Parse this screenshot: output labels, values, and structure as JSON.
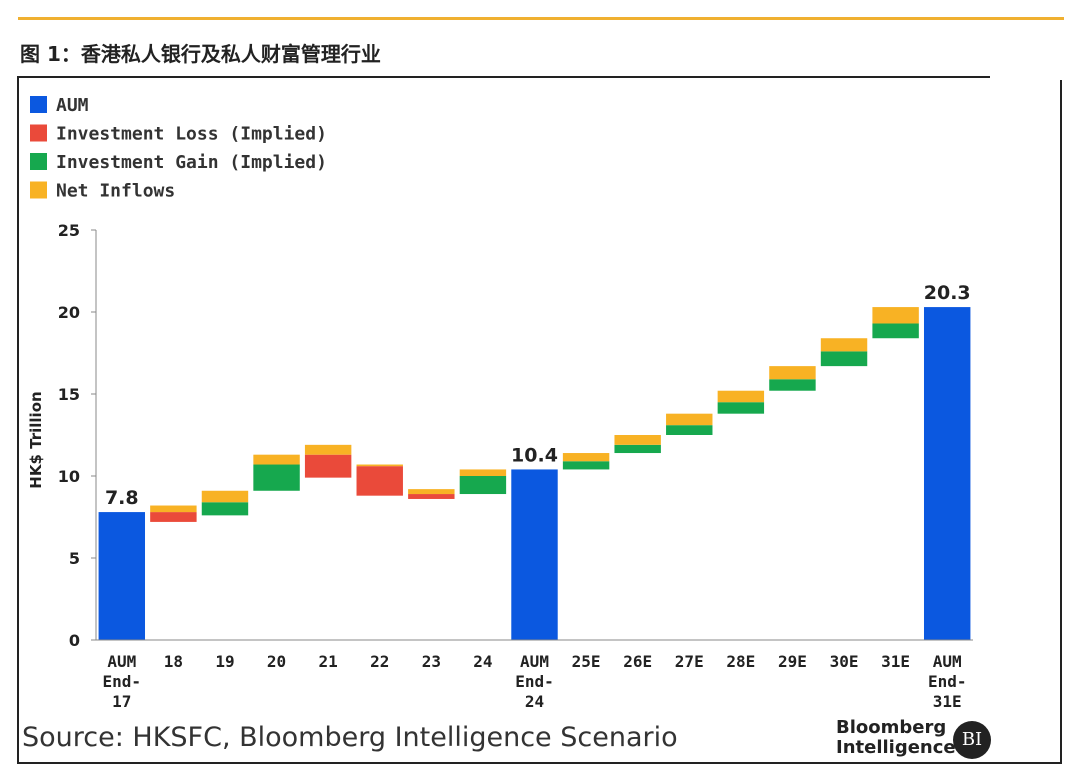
{
  "figure_title": "图 1：香港私人银行及私人财富管理行业",
  "source_note": "Source: HKSFC, Bloomberg Intelligence Scenario",
  "logo": {
    "line1": "Bloomberg",
    "line2": "Intelligence",
    "badge": "BI"
  },
  "colors": {
    "aum": "#0b58e0",
    "loss": "#ea4a3a",
    "gain": "#16a84e",
    "inflow": "#f8b224"
  },
  "chart_data": {
    "type": "bar",
    "subtype": "waterfall",
    "ylabel": "HK$ Trillion",
    "ylim": [
      0,
      25
    ],
    "yticks": [
      "0",
      "5",
      "10",
      "15",
      "20",
      "25"
    ],
    "legend": [
      {
        "key": "aum",
        "label": "AUM"
      },
      {
        "key": "loss",
        "label": "Investment Loss (Implied)"
      },
      {
        "key": "gain",
        "label": "Investment Gain (Implied)"
      },
      {
        "key": "inflow",
        "label": "Net Inflows"
      }
    ],
    "categories": [
      [
        "AUM",
        "End-",
        "17"
      ],
      [
        "18"
      ],
      [
        "19"
      ],
      [
        "20"
      ],
      [
        "21"
      ],
      [
        "22"
      ],
      [
        "23"
      ],
      [
        "24"
      ],
      [
        "AUM",
        "End-",
        "24"
      ],
      [
        "25E"
      ],
      [
        "26E"
      ],
      [
        "27E"
      ],
      [
        "28E"
      ],
      [
        "29E"
      ],
      [
        "30E"
      ],
      [
        "31E"
      ],
      [
        "AUM",
        "End-",
        "31E"
      ]
    ],
    "bars": [
      {
        "segments": [
          {
            "type": "aum",
            "from": 0,
            "to": 7.8
          }
        ],
        "label": "7.8"
      },
      {
        "segments": [
          {
            "type": "loss",
            "from": 7.2,
            "to": 7.8
          },
          {
            "type": "inflow",
            "from": 7.8,
            "to": 8.2
          }
        ]
      },
      {
        "segments": [
          {
            "type": "gain",
            "from": 7.6,
            "to": 8.4
          },
          {
            "type": "inflow",
            "from": 8.4,
            "to": 9.1
          }
        ]
      },
      {
        "segments": [
          {
            "type": "gain",
            "from": 9.1,
            "to": 10.7
          },
          {
            "type": "inflow",
            "from": 10.7,
            "to": 11.3
          }
        ]
      },
      {
        "segments": [
          {
            "type": "loss",
            "from": 9.9,
            "to": 11.3
          },
          {
            "type": "inflow",
            "from": 11.3,
            "to": 11.9
          }
        ]
      },
      {
        "segments": [
          {
            "type": "loss",
            "from": 8.8,
            "to": 10.6
          },
          {
            "type": "inflow",
            "from": 10.6,
            "to": 10.7
          }
        ]
      },
      {
        "segments": [
          {
            "type": "loss",
            "from": 8.6,
            "to": 8.9
          },
          {
            "type": "inflow",
            "from": 8.9,
            "to": 9.2
          }
        ]
      },
      {
        "segments": [
          {
            "type": "gain",
            "from": 8.9,
            "to": 10.0
          },
          {
            "type": "inflow",
            "from": 10.0,
            "to": 10.4
          }
        ]
      },
      {
        "segments": [
          {
            "type": "aum",
            "from": 0,
            "to": 10.4
          }
        ],
        "label": "10.4"
      },
      {
        "segments": [
          {
            "type": "gain",
            "from": 10.4,
            "to": 10.9
          },
          {
            "type": "inflow",
            "from": 10.9,
            "to": 11.4
          }
        ]
      },
      {
        "segments": [
          {
            "type": "gain",
            "from": 11.4,
            "to": 11.9
          },
          {
            "type": "inflow",
            "from": 11.9,
            "to": 12.5
          }
        ]
      },
      {
        "segments": [
          {
            "type": "gain",
            "from": 12.5,
            "to": 13.1
          },
          {
            "type": "inflow",
            "from": 13.1,
            "to": 13.8
          }
        ]
      },
      {
        "segments": [
          {
            "type": "gain",
            "from": 13.8,
            "to": 14.5
          },
          {
            "type": "inflow",
            "from": 14.5,
            "to": 15.2
          }
        ]
      },
      {
        "segments": [
          {
            "type": "gain",
            "from": 15.2,
            "to": 15.9
          },
          {
            "type": "inflow",
            "from": 15.9,
            "to": 16.7
          }
        ]
      },
      {
        "segments": [
          {
            "type": "gain",
            "from": 16.7,
            "to": 17.6
          },
          {
            "type": "inflow",
            "from": 17.6,
            "to": 18.4
          }
        ]
      },
      {
        "segments": [
          {
            "type": "gain",
            "from": 18.4,
            "to": 19.3
          },
          {
            "type": "inflow",
            "from": 19.3,
            "to": 20.3
          }
        ]
      },
      {
        "segments": [
          {
            "type": "aum",
            "from": 0,
            "to": 20.3
          }
        ],
        "label": "20.3"
      }
    ]
  }
}
